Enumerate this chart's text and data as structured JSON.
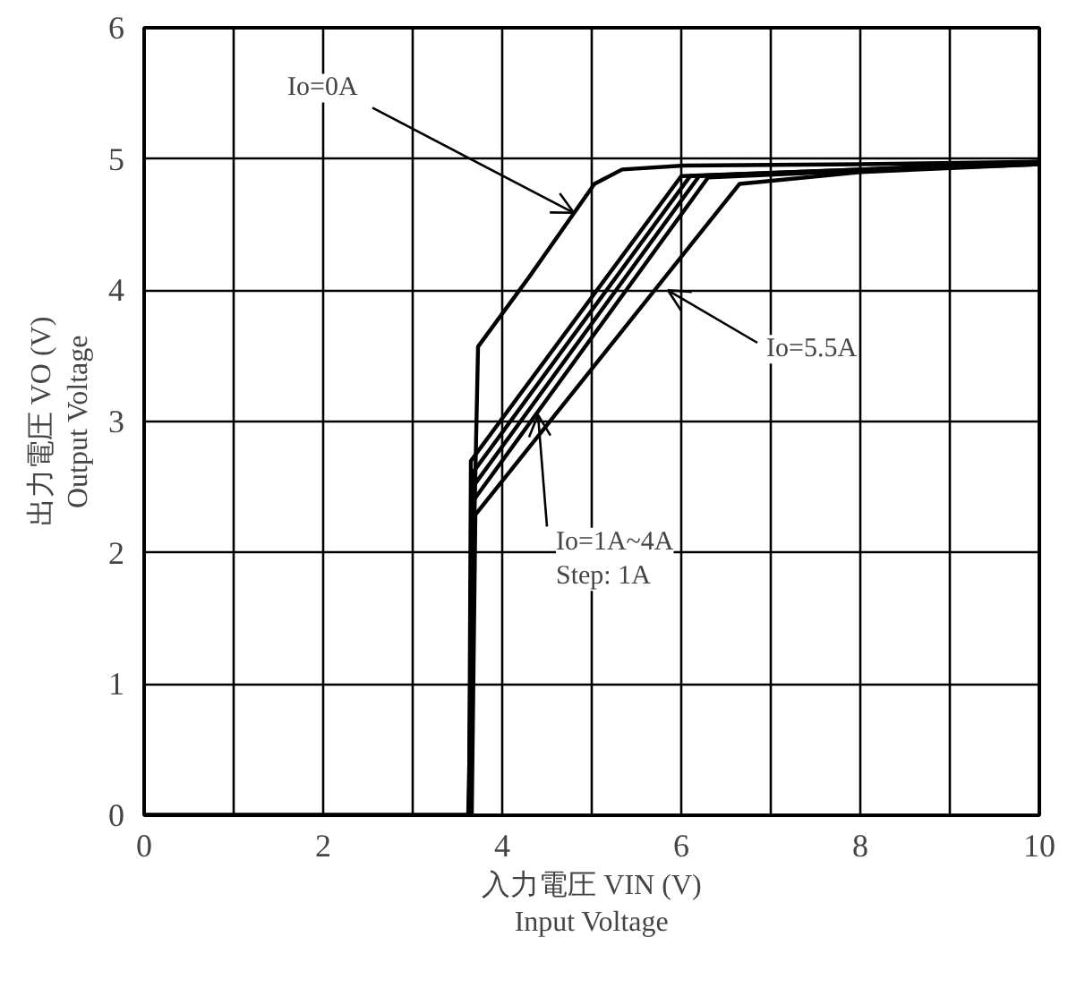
{
  "chart_data": {
    "type": "line",
    "xlabel": "入力電圧 VIN (V)\nInput Voltage",
    "ylabel": "出力電圧 VO (V)\nOutput Voltage",
    "xlim": [
      0,
      10
    ],
    "ylim": [
      0,
      6
    ],
    "xticks": [
      0,
      {
        "value": 1,
        "label": null
      },
      2,
      {
        "value": 3,
        "label": null
      },
      4,
      {
        "value": 5,
        "label": null
      },
      6,
      {
        "value": 7,
        "label": null
      },
      8,
      {
        "value": 9,
        "label": null
      },
      10
    ],
    "yticks": [
      0,
      1,
      2,
      3,
      4,
      5,
      6
    ],
    "grid": true,
    "line_style": "solid",
    "marker": "none",
    "series": [
      {
        "color": "#000000",
        "x": [
          0,
          3.62,
          3.73,
          4.3,
          5.03,
          5.34,
          6.03,
          8,
          10
        ],
        "values": [
          0,
          0,
          3.57,
          4.1,
          4.81,
          4.92,
          4.95,
          4.96,
          4.98
        ]
      },
      {
        "color": "#000000",
        "x": [
          0,
          3.63,
          3.65,
          6.0,
          8,
          10
        ],
        "values": [
          0,
          0,
          2.7,
          4.87,
          4.92,
          4.98
        ]
      },
      {
        "color": "#000000",
        "x": [
          0,
          3.63,
          3.66,
          6.1,
          8,
          10
        ],
        "values": [
          0,
          0,
          2.6,
          4.87,
          4.92,
          4.97
        ]
      },
      {
        "color": "#000000",
        "x": [
          0,
          3.64,
          3.67,
          6.2,
          8,
          10
        ],
        "values": [
          0,
          0,
          2.5,
          4.87,
          4.91,
          4.97
        ]
      },
      {
        "color": "#000000",
        "x": [
          0,
          3.65,
          3.68,
          6.3,
          8,
          10
        ],
        "values": [
          0,
          0,
          2.4,
          4.86,
          4.91,
          4.96
        ]
      },
      {
        "color": "#000000",
        "x": [
          0,
          3.66,
          3.7,
          6.65,
          8,
          10
        ],
        "values": [
          0,
          0,
          2.29,
          4.81,
          4.9,
          4.96
        ]
      }
    ],
    "annotations": [
      {
        "text": "Io=0A",
        "x": 4.8,
        "y": 4.59
      },
      {
        "text": "Io=5.5A",
        "x": 5.85,
        "y": 4.0
      },
      {
        "text": "Io=1A~4A\nStep: 1A",
        "x": 4.4,
        "y": 3.05
      }
    ]
  }
}
